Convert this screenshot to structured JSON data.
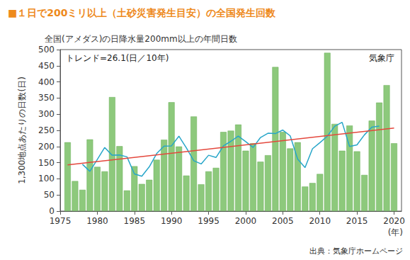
{
  "chart_data": {
    "type": "bar",
    "title": "■１日で200ミリ以上（土砂災害発生目安）の全国発生回数",
    "subtitle": "全国(アメダス)の日降水量200mm以上の年間日数",
    "annotations": [
      "トレンド=26.1(日／10年)",
      "気象庁"
    ],
    "source": "出典：気象庁ホームページ",
    "xlabel": "(年)",
    "ylabel": "1,300地点あたりの日数(日)",
    "x": [
      1976,
      1977,
      1978,
      1979,
      1980,
      1981,
      1982,
      1983,
      1984,
      1985,
      1986,
      1987,
      1988,
      1989,
      1990,
      1991,
      1992,
      1993,
      1994,
      1995,
      1996,
      1997,
      1998,
      1999,
      2000,
      2001,
      2002,
      2003,
      2004,
      2005,
      2006,
      2007,
      2008,
      2009,
      2010,
      2011,
      2012,
      2013,
      2014,
      2015,
      2016,
      2017,
      2018,
      2019,
      2020
    ],
    "series": [
      {
        "type": "bar",
        "color": "#8dc97c",
        "values": [
          213,
          93,
          66,
          222,
          137,
          123,
          353,
          201,
          64,
          139,
          84,
          97,
          159,
          221,
          337,
          200,
          110,
          293,
          83,
          123,
          134,
          245,
          249,
          268,
          187,
          210,
          153,
          173,
          446,
          245,
          194,
          213,
          76,
          87,
          115,
          490,
          270,
          187,
          265,
          185,
          112,
          280,
          336,
          390,
          210
        ]
      },
      {
        "type": "line",
        "color": "#27a6c9",
        "values": [
          null,
          null,
          145,
          123,
          160,
          197,
          173,
          174,
          168,
          115,
          108,
          137,
          178,
          201,
          202,
          232,
          196,
          156,
          146,
          173,
          166,
          202,
          216,
          232,
          215,
          197,
          228,
          241,
          240,
          251,
          233,
          161,
          135,
          193,
          212,
          232,
          263,
          275,
          200,
          205,
          236,
          260,
          263,
          null,
          null
        ]
      },
      {
        "type": "line",
        "color": "#e4473c",
        "x": [
          1976,
          2020
        ],
        "values": [
          143,
          257
        ]
      }
    ],
    "xlim": [
      1975,
      2021
    ],
    "xticks": [
      1975,
      1980,
      1985,
      1990,
      1995,
      2000,
      2005,
      2010,
      2015,
      2020
    ],
    "ylim": [
      0,
      500
    ],
    "yticks": [
      0,
      50,
      100,
      150,
      200,
      250,
      300,
      350,
      400,
      450,
      500
    ],
    "grid": false
  }
}
